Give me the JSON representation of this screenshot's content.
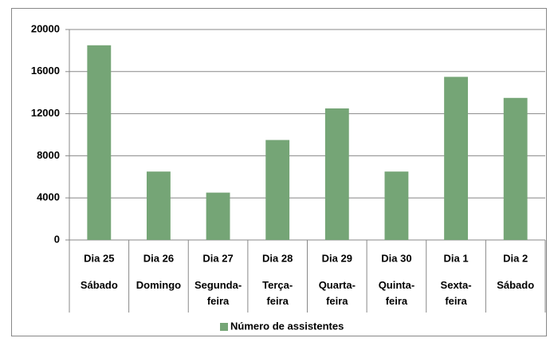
{
  "chart_data": {
    "type": "bar",
    "categories": [
      "Dia 25",
      "Dia 26",
      "Dia 27",
      "Dia 28",
      "Dia 29",
      "Dia 30",
      "Dia 1",
      "Dia 2"
    ],
    "subcategories": [
      "Sábado",
      "Domingo",
      "Segunda-feira",
      "Terça-feira",
      "Quarta-feira",
      "Quinta-feira",
      "Sexta-feira",
      "Sábado"
    ],
    "series": [
      {
        "name": "Número de assistentes",
        "color": "#75a576",
        "values": [
          18500,
          6500,
          4500,
          9500,
          12500,
          6500,
          15500,
          13500
        ]
      }
    ],
    "ylim": [
      0,
      20000
    ],
    "yticks": [
      0,
      4000,
      8000,
      12000,
      16000,
      20000
    ],
    "grid": true,
    "legend": "bottom"
  }
}
